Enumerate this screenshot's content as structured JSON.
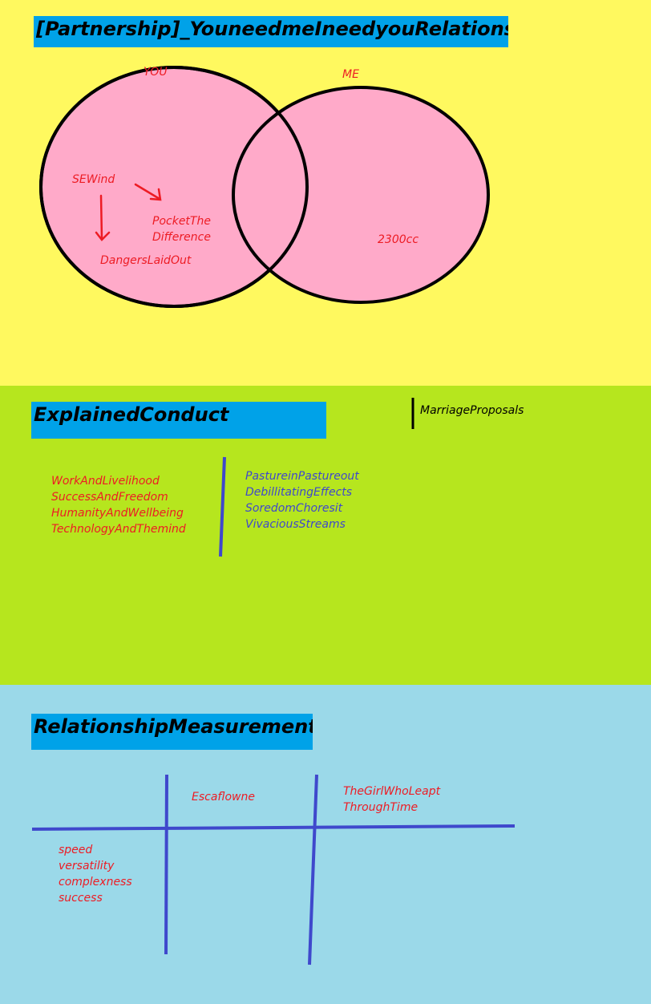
{
  "title": "[Partnership]_YouneedmeIneedyouRelationship",
  "venn": {
    "left_label": "YOU",
    "right_label": "ME",
    "left_items": {
      "item1": "SEWind",
      "item2_line1": "PocketThe",
      "item2_line2": "Difference",
      "item3": "DangersLaidOut"
    },
    "right_items": {
      "item1": "2300cc"
    },
    "circle_fill": "#ffaac9",
    "arrow_color": "#ed1c24"
  },
  "explained_conduct": {
    "heading": "ExplainedConduct",
    "side_note": "MarriageProposals",
    "left_list": [
      "WorkAndLivelihood",
      "SuccessAndFreedom",
      "HumanityAndWellbeing",
      "TechnologyAndThemind"
    ],
    "right_list": [
      "PastureinPastureout",
      "DebillitatingEffects",
      "SoredomChoresit",
      "VivaciousStreams"
    ]
  },
  "relationship_measurements": {
    "heading": "RelationshipMeasurements",
    "col1_header": "Escaflowne",
    "col2_header_line1": "TheGirlWhoLeapt",
    "col2_header_line2": "ThroughTime",
    "row_labels": [
      "speed",
      "versatility",
      "complexness",
      "success"
    ]
  },
  "colors": {
    "band_yellow": "#fff95f",
    "band_green": "#b6e61e",
    "band_blue": "#9bd9e9",
    "heading_bg": "#00a2e8",
    "text_red": "#ed1c24",
    "text_blue": "#3f48cc"
  }
}
